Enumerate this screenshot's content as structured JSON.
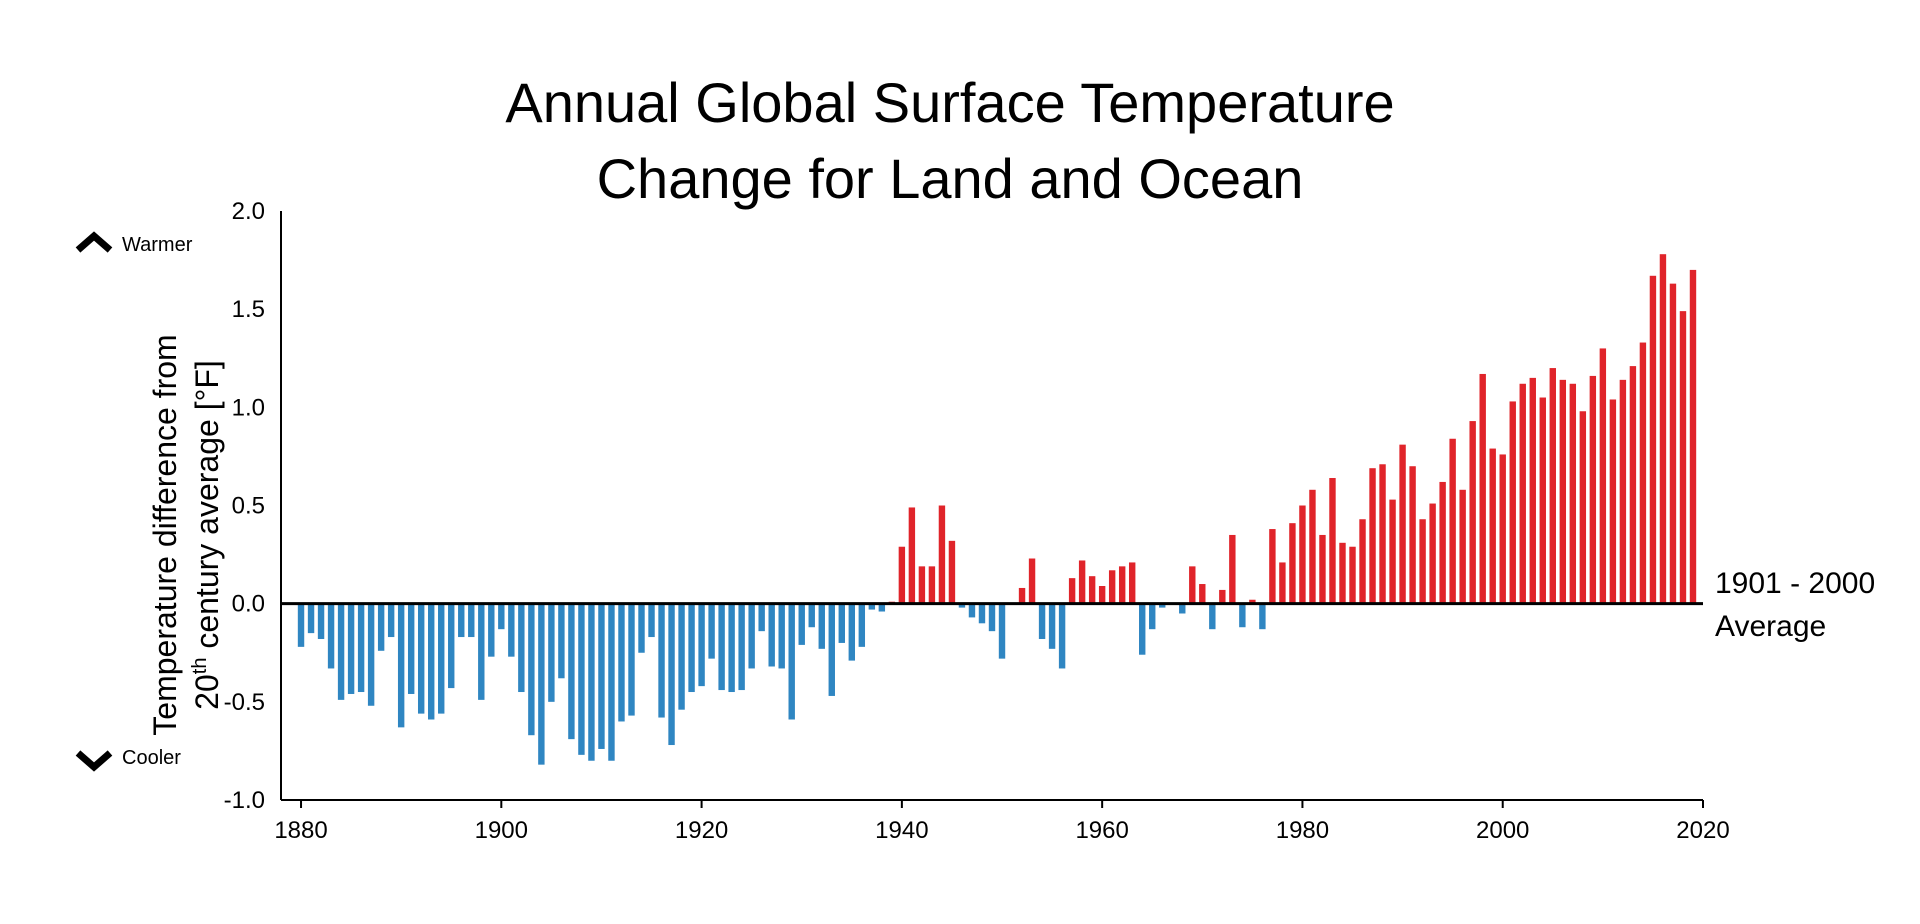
{
  "chart_data": {
    "type": "bar",
    "title_line1": "Annual Global Surface Temperature",
    "title_line2": "Change for Land and Ocean",
    "ylabel_line1": "Temperature difference from",
    "ylabel_line2_prefix": "20",
    "ylabel_line2_sup": "th",
    "ylabel_line2_suffix": " century average [°F]",
    "warmer_label": "Warmer",
    "cooler_label": "Cooler",
    "baseline_label_line1": "1901 - 2000",
    "baseline_label_line2": "Average",
    "ylim": [
      -1.0,
      2.0
    ],
    "xlim": [
      1878,
      2020
    ],
    "yticks": [
      "2.0",
      "1.5",
      "1.0",
      "0.5",
      "0.0",
      "-0.5",
      "-1.0"
    ],
    "xticks": [
      "1880",
      "1900",
      "1920",
      "1940",
      "1960",
      "1980",
      "2000",
      "2020"
    ],
    "grid": false,
    "colors": {
      "positive": "#e0242a",
      "negative": "#2f86c2",
      "axis": "#000000"
    },
    "years": [
      1880,
      1881,
      1882,
      1883,
      1884,
      1885,
      1886,
      1887,
      1888,
      1889,
      1890,
      1891,
      1892,
      1893,
      1894,
      1895,
      1896,
      1897,
      1898,
      1899,
      1900,
      1901,
      1902,
      1903,
      1904,
      1905,
      1906,
      1907,
      1908,
      1909,
      1910,
      1911,
      1912,
      1913,
      1914,
      1915,
      1916,
      1917,
      1918,
      1919,
      1920,
      1921,
      1922,
      1923,
      1924,
      1925,
      1926,
      1927,
      1928,
      1929,
      1930,
      1931,
      1932,
      1933,
      1934,
      1935,
      1936,
      1937,
      1938,
      1939,
      1940,
      1941,
      1942,
      1943,
      1944,
      1945,
      1946,
      1947,
      1948,
      1949,
      1950,
      1951,
      1952,
      1953,
      1954,
      1955,
      1956,
      1957,
      1958,
      1959,
      1960,
      1961,
      1962,
      1963,
      1964,
      1965,
      1966,
      1967,
      1968,
      1969,
      1970,
      1971,
      1972,
      1973,
      1974,
      1975,
      1976,
      1977,
      1978,
      1979,
      1980,
      1981,
      1982,
      1983,
      1984,
      1985,
      1986,
      1987,
      1988,
      1989,
      1990,
      1991,
      1992,
      1993,
      1994,
      1995,
      1996,
      1997,
      1998,
      1999,
      2000,
      2001,
      2002,
      2003,
      2004,
      2005,
      2006,
      2007,
      2008,
      2009,
      2010,
      2011,
      2012,
      2013,
      2014,
      2015,
      2016,
      2017,
      2018,
      2019
    ],
    "values": [
      -0.22,
      -0.15,
      -0.18,
      -0.33,
      -0.49,
      -0.46,
      -0.45,
      -0.52,
      -0.24,
      -0.17,
      -0.63,
      -0.46,
      -0.56,
      -0.59,
      -0.56,
      -0.43,
      -0.17,
      -0.17,
      -0.49,
      -0.27,
      -0.13,
      -0.27,
      -0.45,
      -0.67,
      -0.82,
      -0.5,
      -0.38,
      -0.69,
      -0.77,
      -0.8,
      -0.74,
      -0.8,
      -0.6,
      -0.57,
      -0.25,
      -0.17,
      -0.58,
      -0.72,
      -0.54,
      -0.45,
      -0.42,
      -0.28,
      -0.44,
      -0.45,
      -0.44,
      -0.33,
      -0.14,
      -0.32,
      -0.33,
      -0.59,
      -0.21,
      -0.12,
      -0.23,
      -0.47,
      -0.2,
      -0.29,
      -0.22,
      -0.03,
      -0.04,
      0.01,
      0.29,
      0.49,
      0.19,
      0.19,
      0.5,
      0.32,
      -0.02,
      -0.07,
      -0.1,
      -0.14,
      -0.28,
      0.0,
      0.08,
      0.23,
      -0.18,
      -0.23,
      -0.33,
      0.13,
      0.22,
      0.14,
      0.09,
      0.17,
      0.19,
      0.21,
      -0.26,
      -0.13,
      -0.02,
      0.0,
      -0.05,
      0.19,
      0.1,
      -0.13,
      0.07,
      0.35,
      -0.12,
      0.02,
      -0.13,
      0.38,
      0.21,
      0.41,
      0.5,
      0.58,
      0.35,
      0.64,
      0.31,
      0.29,
      0.43,
      0.69,
      0.71,
      0.53,
      0.81,
      0.7,
      0.43,
      0.51,
      0.62,
      0.84,
      0.58,
      0.93,
      1.17,
      0.79,
      0.76,
      1.03,
      1.12,
      1.15,
      1.05,
      1.2,
      1.14,
      1.12,
      0.98,
      1.16,
      1.3,
      1.04,
      1.14,
      1.21,
      1.33,
      1.67,
      1.78,
      1.63,
      1.49,
      1.7
    ]
  }
}
